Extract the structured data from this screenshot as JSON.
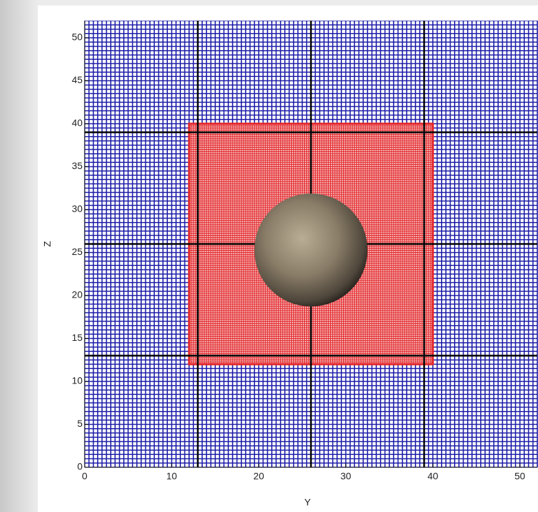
{
  "chart_data": {
    "type": "grid",
    "x_label": "Y",
    "y_label": "Z",
    "xlim": [
      0,
      52
    ],
    "ylim": [
      0,
      52
    ],
    "xticks": [
      0,
      10,
      20,
      30,
      40,
      50
    ],
    "yticks": [
      0,
      5,
      10,
      15,
      20,
      25,
      30,
      35,
      40,
      45,
      50
    ],
    "grid_spacing": 0.5,
    "grid_color": "#1c1ca8",
    "coarse_lines": [
      13,
      26,
      39
    ],
    "coarse_color": "#000000",
    "refined_box": {
      "x": [
        12,
        40
      ],
      "y": [
        12,
        40
      ],
      "spacing": 0.25,
      "color": "#e3262a"
    },
    "body": {
      "center": [
        26,
        25.3
      ],
      "radius": 6.5
    }
  }
}
